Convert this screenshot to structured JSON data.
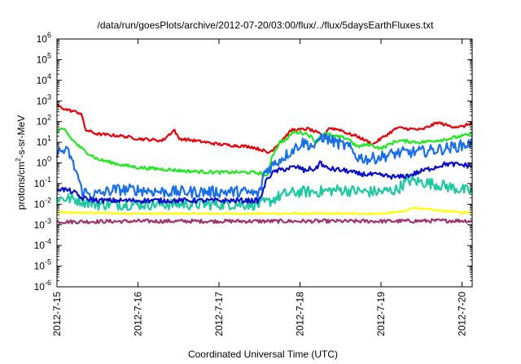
{
  "chart_data": {
    "type": "line",
    "title": "/data/run/goesPlots/archive/2012-07-20/03:00/flux/../flux/5daysEarthFluxes.txt",
    "xlabel": "Coordinated Universal Time (UTC)",
    "ylabel": {
      "pre": "protons/cm",
      "sup": "2",
      "post": "-s-sr-MeV"
    },
    "yscale": "log",
    "ylim": [
      1e-06,
      1000000.0
    ],
    "xlim": [
      "2012-07-15 00:00",
      "2012-07-20 03:00"
    ],
    "x_ticks": [
      "2012-7-15",
      "2012-7-16",
      "2012-7-17",
      "2012-7-18",
      "2012-7-19",
      "2012-7-20"
    ],
    "y_ticks": [
      {
        "base": "10",
        "exp": "6"
      },
      {
        "base": "10",
        "exp": "5"
      },
      {
        "base": "10",
        "exp": "4"
      },
      {
        "base": "10",
        "exp": "3"
      },
      {
        "base": "10",
        "exp": "2"
      },
      {
        "base": "10",
        "exp": "1"
      },
      {
        "base": "10",
        "exp": "0"
      },
      {
        "base": "10",
        "exp": "-1"
      },
      {
        "base": "10",
        "exp": "-2"
      },
      {
        "base": "10",
        "exp": "-3"
      },
      {
        "base": "10",
        "exp": "-4"
      },
      {
        "base": "10",
        "exp": "-5"
      },
      {
        "base": "10",
        "exp": "-6"
      }
    ],
    "grid": false,
    "series": [
      {
        "color": "#e8000b",
        "x": [
          0,
          0.1,
          0.3,
          0.35,
          0.5,
          0.8,
          1.0,
          1.3,
          1.45,
          1.5,
          1.7,
          2.0,
          2.4,
          2.55,
          2.6,
          2.65,
          2.75,
          2.9,
          3.0,
          3.1,
          3.3,
          3.35,
          3.5,
          3.6,
          3.7,
          3.9,
          4.0,
          4.2,
          4.5,
          4.7,
          4.85,
          5.0,
          5.125
        ],
        "y": [
          600,
          400,
          250,
          40,
          25,
          20,
          15,
          12,
          40,
          15,
          12,
          8,
          6,
          4,
          3,
          4,
          10,
          40,
          40,
          45,
          20,
          50,
          40,
          25,
          20,
          8,
          15,
          50,
          40,
          90,
          60,
          55,
          90
        ],
        "noise": 0.07
      },
      {
        "color": "#1ee81e",
        "x": [
          0,
          0.05,
          0.1,
          0.15,
          0.2,
          0.3,
          0.5,
          0.8,
          1.0,
          1.3,
          1.6,
          2.0,
          2.4,
          2.55,
          2.6,
          2.65,
          2.75,
          2.85,
          2.9,
          3.0,
          3.1,
          3.2,
          3.3,
          3.4,
          3.6,
          3.7,
          3.85,
          4.0,
          4.2,
          4.5,
          4.8,
          5.0,
          5.125
        ],
        "y": [
          30,
          40,
          40,
          20,
          12,
          5,
          1.5,
          0.8,
          0.6,
          0.5,
          0.4,
          0.35,
          0.35,
          0.3,
          0.2,
          2,
          10,
          15,
          30,
          30,
          25,
          10,
          30,
          20,
          15,
          6,
          8,
          5,
          12,
          10,
          14,
          20,
          25
        ],
        "noise": 0.08
      },
      {
        "color": "#1a6fe8",
        "x": [
          0,
          0.08,
          0.15,
          0.2,
          0.25,
          0.3,
          0.4,
          0.5,
          0.7,
          1.0,
          1.3,
          1.6,
          2.0,
          2.3,
          2.5,
          2.55,
          2.6,
          2.7,
          2.8,
          2.9,
          3.0,
          3.05,
          3.1,
          3.2,
          3.25,
          3.5,
          3.6,
          3.7,
          3.85,
          4.0,
          4.2,
          4.5,
          4.8,
          5.0,
          5.125
        ],
        "y": [
          3,
          4,
          3,
          0.8,
          0.3,
          0.05,
          0.03,
          0.03,
          0.05,
          0.05,
          0.04,
          0.04,
          0.04,
          0.04,
          0.03,
          0.3,
          0.5,
          1,
          2,
          4,
          8,
          10,
          8,
          6,
          20,
          8,
          6,
          2,
          1.5,
          2,
          3,
          3.5,
          5,
          7,
          9
        ],
        "noise": 0.28
      },
      {
        "color": "#0a0fc8",
        "x": [
          0,
          0.1,
          0.2,
          0.3,
          0.5,
          1.0,
          1.5,
          2.0,
          2.3,
          2.5,
          2.6,
          2.7,
          2.9,
          3.0,
          3.05,
          3.1,
          3.2,
          3.25,
          3.3,
          3.4,
          3.6,
          3.7,
          4.0,
          4.2,
          4.35,
          4.5,
          4.8,
          5.0,
          5.125
        ],
        "y": [
          0.06,
          0.05,
          0.04,
          0.02,
          0.015,
          0.015,
          0.015,
          0.015,
          0.015,
          0.015,
          0.2,
          0.4,
          0.6,
          0.6,
          0.4,
          0.5,
          0.5,
          1.2,
          0.6,
          0.5,
          0.4,
          0.3,
          0.25,
          0.2,
          0.25,
          0.4,
          0.9,
          0.8,
          0.7
        ],
        "noise": 0.12
      },
      {
        "color": "#1ec8a0",
        "x": [
          0,
          0.2,
          0.5,
          1.0,
          1.5,
          2.0,
          2.5,
          2.6,
          2.7,
          2.8,
          3.0,
          3.2,
          3.5,
          3.8,
          4.0,
          4.2,
          4.25,
          4.35,
          4.5,
          4.7,
          5.0,
          5.125
        ],
        "y": [
          0.02,
          0.018,
          0.01,
          0.01,
          0.01,
          0.01,
          0.01,
          0.012,
          0.02,
          0.03,
          0.04,
          0.04,
          0.05,
          0.04,
          0.04,
          0.05,
          0.08,
          0.14,
          0.12,
          0.09,
          0.05,
          0.04
        ],
        "noise": 0.28
      },
      {
        "color": "#ffff00",
        "x": [
          0,
          1.0,
          2.0,
          3.0,
          4.0,
          4.3,
          4.4,
          4.5,
          4.7,
          5.0,
          5.125
        ],
        "y": [
          0.004,
          0.0035,
          0.0035,
          0.0035,
          0.0035,
          0.0045,
          0.007,
          0.006,
          0.005,
          0.004,
          0.004
        ],
        "noise": 0.04
      },
      {
        "color": "#a0306e",
        "x": [
          0,
          1.0,
          2.0,
          3.0,
          4.0,
          5.0,
          5.125
        ],
        "y": [
          0.0014,
          0.0015,
          0.0015,
          0.0015,
          0.0015,
          0.0016,
          0.0015
        ],
        "noise": 0.09
      }
    ]
  }
}
